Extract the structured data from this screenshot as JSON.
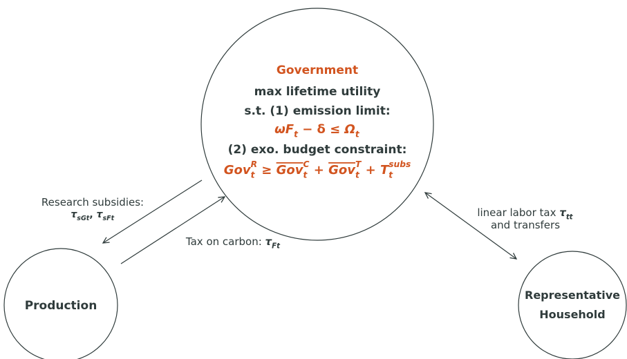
{
  "nodes": {
    "government": {
      "title": "Government",
      "lines": [
        "max lifetime utility",
        "s.t. (1) emission limit:"
      ],
      "emission_limit": [
        {
          "base": "ωF",
          "sub": "t"
        },
        " − δ ≤ ",
        {
          "base": "Ω",
          "sub": "t"
        }
      ],
      "budget_label": "(2) exo. budget constraint:",
      "budget_constraint": [
        {
          "base": "Gov",
          "sub": "t",
          "sup": "R"
        },
        " ≥ ",
        {
          "base": "Gov",
          "sub": "t",
          "sup": "C",
          "overline": true
        },
        " + ",
        {
          "base": "Gov",
          "sub": "t",
          "sup": "T",
          "overline": true
        },
        " + ",
        {
          "base": "T",
          "sub": "t",
          "sup": "subs"
        }
      ]
    },
    "production": {
      "label": "Production"
    },
    "household": {
      "label": [
        "Representative",
        "Household"
      ]
    }
  },
  "edges": {
    "research": {
      "label": "Research subsidies:",
      "symbols": [
        {
          "base": "τ",
          "sub": "sGt"
        },
        ", ",
        {
          "base": "τ",
          "sub": "sFt"
        }
      ]
    },
    "carbon": {
      "label": [
        "Tax on carbon: ",
        {
          "base": "τ",
          "sub": "Ft"
        }
      ]
    },
    "labor": {
      "label": [
        [
          "linear labor tax ",
          {
            "base": "τ",
            "sub": "tt"
          }
        ],
        "and transfers"
      ]
    }
  }
}
